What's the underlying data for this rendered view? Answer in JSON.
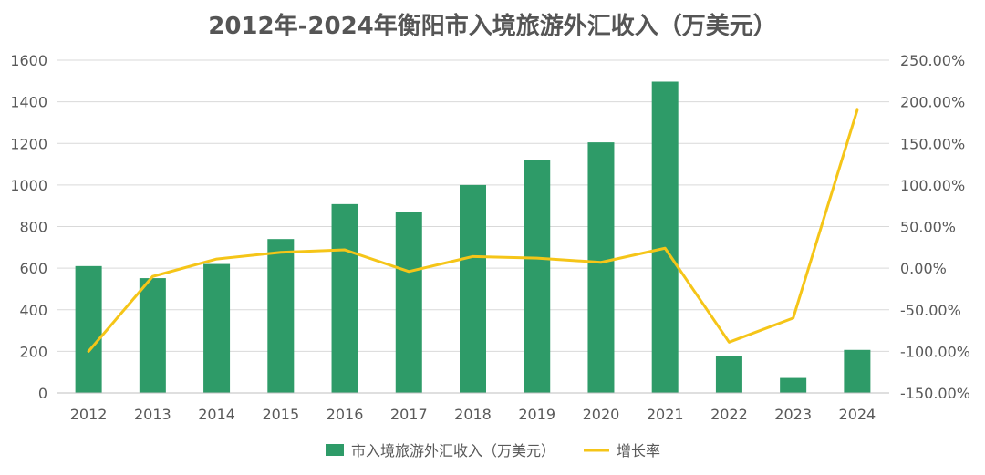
{
  "chart_data": {
    "type": "bar+line",
    "title": "2012年-2024年衡阳市入境旅游外汇收入（万美元）",
    "categories": [
      "2012",
      "2013",
      "2014",
      "2015",
      "2016",
      "2017",
      "2018",
      "2019",
      "2020",
      "2021",
      "2022",
      "2023",
      "2024"
    ],
    "series": [
      {
        "name": "市入境旅游外汇收入（万美元）",
        "type": "bar",
        "axis": "left",
        "color": "#2E9B68",
        "values": [
          610,
          552,
          620,
          740,
          908,
          872,
          1000,
          1120,
          1205,
          1497,
          178,
          72,
          207
        ]
      },
      {
        "name": "增长率",
        "type": "line",
        "axis": "right",
        "color": "#F5C518",
        "values": [
          -100,
          -10,
          11,
          19,
          22,
          -4,
          14,
          12,
          7,
          24,
          -89,
          -60,
          190
        ]
      }
    ],
    "y_left": {
      "min": 0,
      "max": 1600,
      "step": 200,
      "ticks": [
        "0",
        "200",
        "400",
        "600",
        "800",
        "1000",
        "1200",
        "1400",
        "1600"
      ]
    },
    "y_right": {
      "min": -150,
      "max": 250,
      "step": 50,
      "ticks": [
        "-150.00%",
        "-100.00%",
        "-50.00%",
        "0.00%",
        "50.00%",
        "100.00%",
        "150.00%",
        "200.00%",
        "250.00%"
      ]
    },
    "grid": true,
    "legend_position": "bottom"
  }
}
